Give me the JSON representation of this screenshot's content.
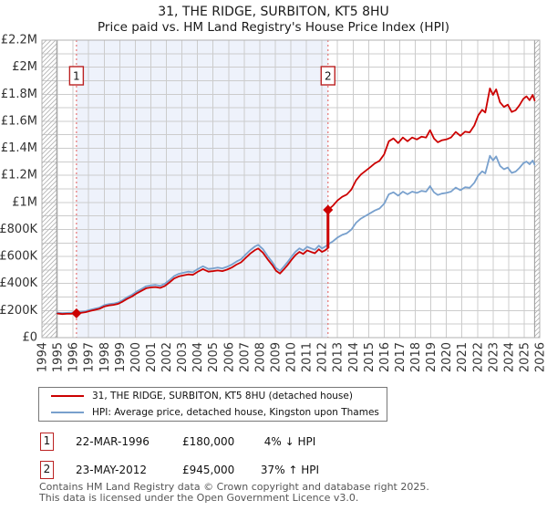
{
  "title": "31, THE RIDGE, SURBITON, KT5 8HU",
  "subtitle": "Price paid vs. HM Land Registry's House Price Index (HPI)",
  "legend": {
    "items": [
      {
        "label": "31, THE RIDGE, SURBITON, KT5 8HU (detached house)",
        "color": "#cc0000"
      },
      {
        "label": "HPI: Average price, detached house, Kingston upon Thames",
        "color": "#78a0cd"
      }
    ]
  },
  "annotations": [
    {
      "index": "1",
      "date": "22-MAR-1996",
      "price": "£180,000",
      "hpi_diff": "4% ↓ HPI"
    },
    {
      "index": "2",
      "date": "23-MAY-2012",
      "price": "£945,000",
      "hpi_diff": "37% ↑ HPI"
    }
  ],
  "footer": {
    "line1": "Contains HM Land Registry data © Crown copyright and database right 2025.",
    "line2": "This data is licensed under the Open Government Licence v3.0."
  },
  "chart_data": {
    "type": "line",
    "colors": {
      "property_line": "#cc0000",
      "hpi_line": "#78a0cd",
      "shade": "#eef2fb",
      "dashed_marker": "#e57373",
      "marker_box_border": "#bb2222",
      "grid": "#cccccc",
      "plot_border": "#b0b0b0",
      "hatch": "#b5b5b5",
      "axis_text": "#333333"
    },
    "x_axis": {
      "min": 1994,
      "max": 2026,
      "tick_labels": [
        "1994",
        "1995",
        "1996",
        "1997",
        "1998",
        "1999",
        "2000",
        "2001",
        "2002",
        "2003",
        "2004",
        "2005",
        "2006",
        "2007",
        "2008",
        "2009",
        "2010",
        "2011",
        "2012",
        "2013",
        "2014",
        "2015",
        "2016",
        "2017",
        "2018",
        "2019",
        "2020",
        "2021",
        "2022",
        "2023",
        "2024",
        "2025",
        "2026"
      ]
    },
    "y_axis": {
      "min_k": 0,
      "max_k": 2200,
      "grid_step_k": 100,
      "tick_step_k": 200,
      "tick_labels": [
        "£0",
        "£200K",
        "£400K",
        "£600K",
        "£800K",
        "£1M",
        "£1.2M",
        "£1.4M",
        "£1.6M",
        "£1.8M",
        "£2M",
        "£2.2M"
      ]
    },
    "shaded_region": {
      "from": 1996.22,
      "to": 2012.39
    },
    "hatch_regions": [
      [
        1994,
        1994.95
      ],
      [
        2025.67,
        2026
      ]
    ],
    "sale_markers": [
      {
        "label": "1",
        "year": 1996.22,
        "price_k": 180
      },
      {
        "label": "2",
        "year": 2012.39,
        "price_k": 945,
        "jump_from_k": 662
      }
    ],
    "series": [
      {
        "name": "HPI: Average price, detached house, Kingston upon Thames",
        "color": "#78a0cd",
        "points_k": [
          [
            1995.0,
            185
          ],
          [
            1995.3,
            181
          ],
          [
            1995.6,
            183
          ],
          [
            1995.9,
            184
          ],
          [
            1996.22,
            187
          ],
          [
            1996.5,
            191
          ],
          [
            1996.8,
            196
          ],
          [
            1997.1,
            206
          ],
          [
            1997.4,
            214
          ],
          [
            1997.7,
            222
          ],
          [
            1998.0,
            240
          ],
          [
            1998.3,
            248
          ],
          [
            1998.6,
            252
          ],
          [
            1998.9,
            260
          ],
          [
            1999.2,
            278
          ],
          [
            1999.5,
            300
          ],
          [
            1999.8,
            318
          ],
          [
            2000.1,
            342
          ],
          [
            2000.4,
            360
          ],
          [
            2000.7,
            380
          ],
          [
            2001.0,
            386
          ],
          [
            2001.3,
            390
          ],
          [
            2001.6,
            383
          ],
          [
            2001.9,
            398
          ],
          [
            2002.2,
            425
          ],
          [
            2002.5,
            455
          ],
          [
            2002.8,
            472
          ],
          [
            2003.1,
            480
          ],
          [
            2003.4,
            488
          ],
          [
            2003.7,
            483
          ],
          [
            2004.0,
            506
          ],
          [
            2004.35,
            528
          ],
          [
            2004.7,
            508
          ],
          [
            2005.0,
            512
          ],
          [
            2005.3,
            518
          ],
          [
            2005.6,
            512
          ],
          [
            2005.9,
            524
          ],
          [
            2006.2,
            540
          ],
          [
            2006.5,
            562
          ],
          [
            2006.8,
            580
          ],
          [
            2007.1,
            615
          ],
          [
            2007.4,
            648
          ],
          [
            2007.7,
            675
          ],
          [
            2007.9,
            686
          ],
          [
            2008.2,
            655
          ],
          [
            2008.5,
            605
          ],
          [
            2008.8,
            560
          ],
          [
            2009.05,
            515
          ],
          [
            2009.3,
            494
          ],
          [
            2009.55,
            525
          ],
          [
            2009.8,
            560
          ],
          [
            2010.05,
            600
          ],
          [
            2010.3,
            635
          ],
          [
            2010.55,
            660
          ],
          [
            2010.8,
            645
          ],
          [
            2011.05,
            672
          ],
          [
            2011.3,
            660
          ],
          [
            2011.55,
            650
          ],
          [
            2011.8,
            680
          ],
          [
            2012.0,
            660
          ],
          [
            2012.2,
            672
          ],
          [
            2012.39,
            690
          ],
          [
            2012.7,
            712
          ],
          [
            2013.0,
            740
          ],
          [
            2013.3,
            760
          ],
          [
            2013.6,
            772
          ],
          [
            2013.9,
            800
          ],
          [
            2014.2,
            850
          ],
          [
            2014.5,
            880
          ],
          [
            2014.8,
            900
          ],
          [
            2015.1,
            920
          ],
          [
            2015.4,
            940
          ],
          [
            2015.7,
            955
          ],
          [
            2016.0,
            990
          ],
          [
            2016.3,
            1060
          ],
          [
            2016.6,
            1075
          ],
          [
            2016.9,
            1050
          ],
          [
            2017.2,
            1080
          ],
          [
            2017.5,
            1060
          ],
          [
            2017.8,
            1080
          ],
          [
            2018.1,
            1070
          ],
          [
            2018.4,
            1085
          ],
          [
            2018.7,
            1080
          ],
          [
            2018.95,
            1120
          ],
          [
            2019.2,
            1075
          ],
          [
            2019.45,
            1055
          ],
          [
            2019.7,
            1065
          ],
          [
            2020.0,
            1070
          ],
          [
            2020.3,
            1080
          ],
          [
            2020.6,
            1110
          ],
          [
            2020.9,
            1090
          ],
          [
            2021.2,
            1112
          ],
          [
            2021.5,
            1108
          ],
          [
            2021.8,
            1145
          ],
          [
            2022.05,
            1200
          ],
          [
            2022.3,
            1230
          ],
          [
            2022.5,
            1215
          ],
          [
            2022.8,
            1345
          ],
          [
            2023.0,
            1310
          ],
          [
            2023.2,
            1340
          ],
          [
            2023.45,
            1270
          ],
          [
            2023.7,
            1245
          ],
          [
            2023.95,
            1258
          ],
          [
            2024.2,
            1218
          ],
          [
            2024.45,
            1228
          ],
          [
            2024.7,
            1255
          ],
          [
            2024.95,
            1290
          ],
          [
            2025.15,
            1302
          ],
          [
            2025.35,
            1282
          ],
          [
            2025.55,
            1310
          ],
          [
            2025.67,
            1280
          ]
        ]
      },
      {
        "name": "31, THE RIDGE, SURBITON, KT5 8HU (detached house)",
        "color": "#cc0000",
        "points_k": [
          [
            1995.0,
            178
          ],
          [
            1995.3,
            174
          ],
          [
            1995.6,
            176
          ],
          [
            1995.9,
            177
          ],
          [
            1996.22,
            180
          ],
          [
            1996.5,
            183
          ],
          [
            1996.8,
            188
          ],
          [
            1997.1,
            198
          ],
          [
            1997.4,
            205
          ],
          [
            1997.7,
            213
          ],
          [
            1998.0,
            230
          ],
          [
            1998.3,
            238
          ],
          [
            1998.6,
            242
          ],
          [
            1998.9,
            250
          ],
          [
            1999.2,
            267
          ],
          [
            1999.5,
            288
          ],
          [
            1999.8,
            305
          ],
          [
            2000.1,
            328
          ],
          [
            2000.4,
            346
          ],
          [
            2000.7,
            365
          ],
          [
            2001.0,
            371
          ],
          [
            2001.3,
            374
          ],
          [
            2001.6,
            368
          ],
          [
            2001.9,
            382
          ],
          [
            2002.2,
            408
          ],
          [
            2002.5,
            437
          ],
          [
            2002.8,
            453
          ],
          [
            2003.1,
            461
          ],
          [
            2003.4,
            468
          ],
          [
            2003.7,
            464
          ],
          [
            2004.0,
            486
          ],
          [
            2004.35,
            507
          ],
          [
            2004.7,
            488
          ],
          [
            2005.0,
            492
          ],
          [
            2005.3,
            497
          ],
          [
            2005.6,
            492
          ],
          [
            2005.9,
            503
          ],
          [
            2006.2,
            518
          ],
          [
            2006.5,
            540
          ],
          [
            2006.8,
            557
          ],
          [
            2007.1,
            590
          ],
          [
            2007.4,
            622
          ],
          [
            2007.7,
            648
          ],
          [
            2007.9,
            659
          ],
          [
            2008.2,
            629
          ],
          [
            2008.5,
            581
          ],
          [
            2008.8,
            538
          ],
          [
            2009.05,
            494
          ],
          [
            2009.3,
            474
          ],
          [
            2009.55,
            504
          ],
          [
            2009.8,
            538
          ],
          [
            2010.05,
            576
          ],
          [
            2010.3,
            610
          ],
          [
            2010.55,
            634
          ],
          [
            2010.8,
            619
          ],
          [
            2011.05,
            645
          ],
          [
            2011.3,
            634
          ],
          [
            2011.55,
            624
          ],
          [
            2011.8,
            653
          ],
          [
            2012.0,
            634
          ],
          [
            2012.2,
            645
          ],
          [
            2012.39,
            662
          ],
          [
            2012.39,
            945
          ],
          [
            2012.7,
            975
          ],
          [
            2013.0,
            1014
          ],
          [
            2013.3,
            1041
          ],
          [
            2013.6,
            1058
          ],
          [
            2013.9,
            1096
          ],
          [
            2014.2,
            1165
          ],
          [
            2014.5,
            1206
          ],
          [
            2014.8,
            1233
          ],
          [
            2015.1,
            1260
          ],
          [
            2015.4,
            1288
          ],
          [
            2015.7,
            1308
          ],
          [
            2016.0,
            1356
          ],
          [
            2016.3,
            1452
          ],
          [
            2016.6,
            1473
          ],
          [
            2016.9,
            1439
          ],
          [
            2017.2,
            1480
          ],
          [
            2017.5,
            1452
          ],
          [
            2017.8,
            1480
          ],
          [
            2018.1,
            1466
          ],
          [
            2018.4,
            1486
          ],
          [
            2018.7,
            1480
          ],
          [
            2018.95,
            1534
          ],
          [
            2019.2,
            1473
          ],
          [
            2019.45,
            1445
          ],
          [
            2019.7,
            1459
          ],
          [
            2020.0,
            1466
          ],
          [
            2020.3,
            1480
          ],
          [
            2020.6,
            1521
          ],
          [
            2020.9,
            1493
          ],
          [
            2021.2,
            1523
          ],
          [
            2021.5,
            1518
          ],
          [
            2021.8,
            1569
          ],
          [
            2022.05,
            1644
          ],
          [
            2022.3,
            1685
          ],
          [
            2022.5,
            1665
          ],
          [
            2022.8,
            1843
          ],
          [
            2023.0,
            1795
          ],
          [
            2023.2,
            1836
          ],
          [
            2023.45,
            1740
          ],
          [
            2023.7,
            1706
          ],
          [
            2023.95,
            1723
          ],
          [
            2024.2,
            1669
          ],
          [
            2024.45,
            1682
          ],
          [
            2024.7,
            1719
          ],
          [
            2024.95,
            1767
          ],
          [
            2025.15,
            1784
          ],
          [
            2025.35,
            1756
          ],
          [
            2025.55,
            1795
          ],
          [
            2025.67,
            1754
          ]
        ]
      }
    ]
  }
}
